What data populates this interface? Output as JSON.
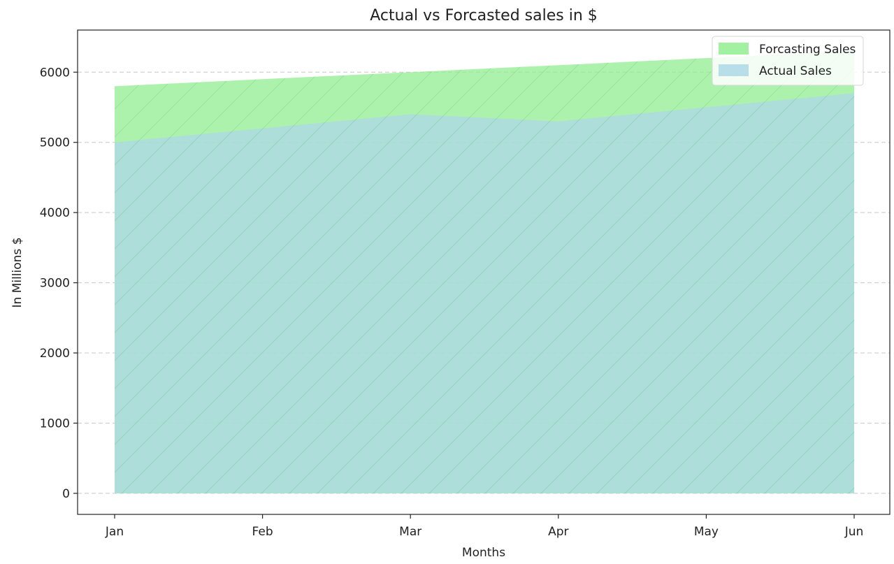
{
  "chart_data": {
    "type": "area",
    "title": "Actual vs Forcasted sales in $",
    "xlabel": "Months",
    "ylabel": "In Millions $",
    "categories": [
      "Jan",
      "Feb",
      "Mar",
      "Apr",
      "May",
      "Jun"
    ],
    "series": [
      {
        "name": "Forcasting Sales",
        "values": [
          5800,
          5900,
          6000,
          6100,
          6200,
          6300
        ],
        "color": "#90ee90"
      },
      {
        "name": "Actual Sales",
        "values": [
          5000,
          5200,
          5400,
          5300,
          5500,
          5700
        ],
        "color": "#add8e6"
      }
    ],
    "ylim": [
      -300,
      6600
    ],
    "yticks": [
      0,
      1000,
      2000,
      3000,
      4000,
      5000,
      6000
    ],
    "grid": "y-dashed",
    "legend_position": "top-right"
  }
}
